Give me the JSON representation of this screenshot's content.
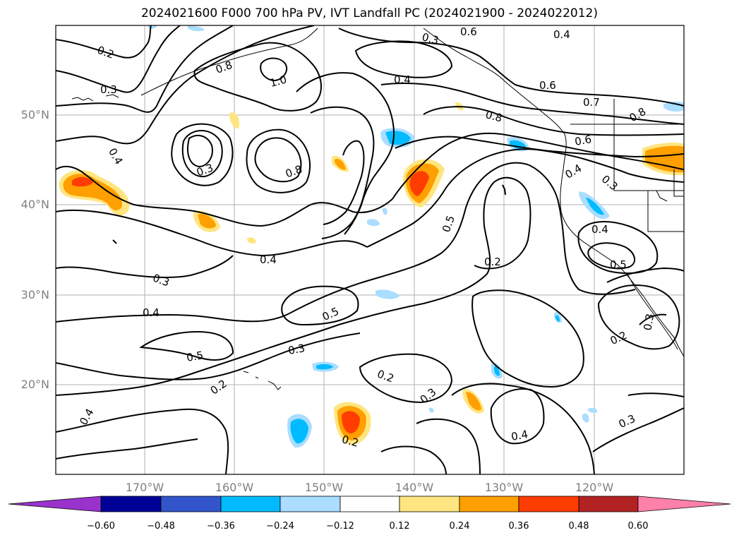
{
  "title": "2024021600 F000 700 hPa PV, IVT Landfall PC (2024021900 - 2024022012)",
  "map": {
    "lat_labels": [
      "50°N",
      "40°N",
      "30°N",
      "20°N"
    ],
    "lon_labels": [
      "170°W",
      "160°W",
      "150°W",
      "140°W",
      "130°W",
      "120°W"
    ],
    "contour_labels": [
      "0.2",
      "0.3",
      "0.8",
      "1.0",
      "0.4",
      "0.3",
      "0.6",
      "0.4",
      "0.6",
      "0.7",
      "0.8",
      "0.4",
      "0.3",
      "0.8",
      "0.8",
      "0.6",
      "0.4",
      "0.3",
      "0.4",
      "0.5",
      "0.4",
      "0.5",
      "0.3",
      "0.4",
      "0.2",
      "0.5",
      "0.3",
      "0.5",
      "0.2",
      "0.2",
      "0.3",
      "0.4",
      "0.4",
      "0.3",
      "0.2",
      "0.3",
      "0.2"
    ],
    "colors": {
      "coast": "#000000",
      "grid": "#b0b0b0",
      "contour": "#000000"
    }
  },
  "colorbar": {
    "ticks": [
      "−0.60",
      "−0.48",
      "−0.36",
      "−0.24",
      "−0.12",
      "0.12",
      "0.24",
      "0.36",
      "0.48",
      "0.60"
    ],
    "colors": [
      "#9933cc",
      "#000099",
      "#3355cc",
      "#00bbff",
      "#aaddff",
      "#ffffff",
      "#ffe57f",
      "#ff9f00",
      "#ff3d00",
      "#b22222",
      "#ff80a8"
    ]
  }
}
